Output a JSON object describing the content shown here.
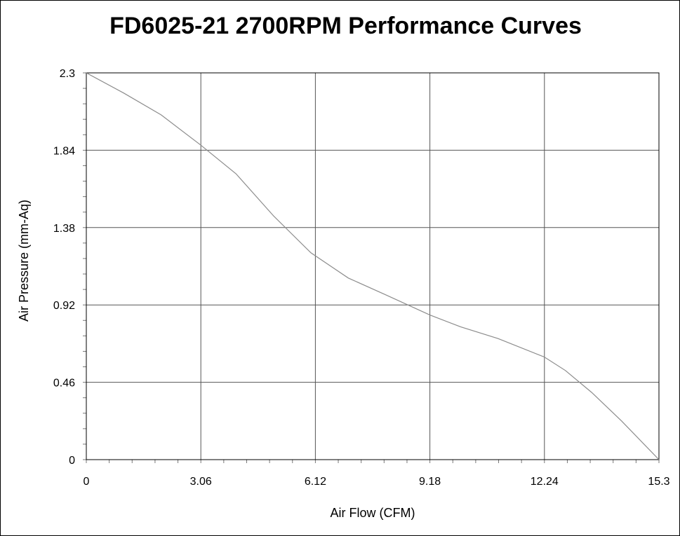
{
  "chart_data": {
    "type": "line",
    "title": "FD6025-21 2700RPM Performance Curves",
    "xlabel": "Air Flow (CFM)",
    "ylabel": "Air Pressure (mm-Aq)",
    "xlim": [
      0,
      15.3
    ],
    "ylim": [
      0,
      2.3
    ],
    "xticks": [
      "0",
      "3.06",
      "6.12",
      "9.18",
      "12.24",
      "15.3"
    ],
    "yticks": [
      "0",
      "0.46",
      "0.92",
      "1.38",
      "1.84",
      "2.3"
    ],
    "grid": true,
    "legend": "none",
    "line_color": "#8c8c8c",
    "series": [
      {
        "x": [
          0,
          1.0,
          2.0,
          3.06,
          4.0,
          5.0,
          6.0,
          7.0,
          8.0,
          9.18,
          10.0,
          11.0,
          12.24,
          12.8,
          13.5,
          14.3,
          15.3
        ],
        "y": [
          2.3,
          2.18,
          2.05,
          1.87,
          1.7,
          1.45,
          1.23,
          1.08,
          0.98,
          0.86,
          0.79,
          0.72,
          0.61,
          0.53,
          0.4,
          0.23,
          0.0
        ]
      }
    ]
  }
}
